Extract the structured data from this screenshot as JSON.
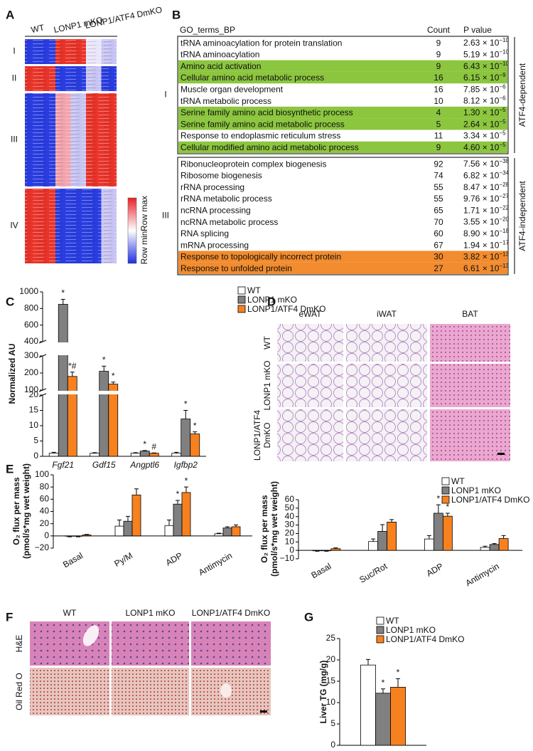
{
  "panels": [
    "A",
    "B",
    "C",
    "D",
    "E",
    "F",
    "G"
  ],
  "heatmap": {
    "columns": [
      "WT",
      "LONP1 mKO",
      "LONP1/ATF4 DmKO"
    ],
    "clusters": [
      "I",
      "II",
      "III",
      "IV"
    ],
    "scale": {
      "max": "Row max",
      "min": "Row min"
    }
  },
  "go_table": {
    "header": [
      "GO_terms_BP",
      "Count",
      "P value"
    ],
    "groups": [
      {
        "label": "I",
        "side": "ATF4-dependent",
        "rows": [
          {
            "term": "tRNA aminoacylation for protein translation",
            "count": 9,
            "p": {
              "base": "2.63 × 10",
              "exp": "−10"
            }
          },
          {
            "term": "tRNA aminoacylation",
            "count": 9,
            "p": {
              "base": "5.19 × 10",
              "exp": "−10"
            }
          },
          {
            "term": "Amino acid activation",
            "count": 9,
            "p": {
              "base": "6.43 × 10",
              "exp": "−10"
            },
            "highlight": "#8cc63f"
          },
          {
            "term": "Cellular amino acid metabolic process",
            "count": 16,
            "p": {
              "base": "6.15 × 10",
              "exp": "−9"
            },
            "highlight": "#8cc63f"
          },
          {
            "term": "Muscle organ development",
            "count": 16,
            "p": {
              "base": "7.85 × 10",
              "exp": "−6"
            }
          },
          {
            "term": "tRNA metabolic process",
            "count": 10,
            "p": {
              "base": "8.12 × 10",
              "exp": "−6"
            }
          },
          {
            "term": "Serine family amino acid biosynthetic process",
            "count": 4,
            "p": {
              "base": "1.30 × 10",
              "exp": "−5"
            },
            "highlight": "#8cc63f"
          },
          {
            "term": "Serine family amino acid metabolic process",
            "count": 5,
            "p": {
              "base": "2.64 × 10",
              "exp": "−5"
            },
            "highlight": "#8cc63f"
          },
          {
            "term": "Response to endoplasmic reticulum stress",
            "count": 11,
            "p": {
              "base": "3.34 × 10",
              "exp": "−5"
            }
          },
          {
            "term": "Cellular modified amino acid metabolic process",
            "count": 9,
            "p": {
              "base": "4.60 × 10",
              "exp": "−5"
            },
            "highlight": "#8cc63f"
          }
        ]
      },
      {
        "label": "III",
        "side": "ATF4-independent",
        "rows": [
          {
            "term": "Ribonucleoprotein complex biogenesis",
            "count": 92,
            "p": {
              "base": "7.56 × 10",
              "exp": "−38"
            }
          },
          {
            "term": "Ribosome biogenesis",
            "count": 74,
            "p": {
              "base": "6.82 × 10",
              "exp": "−34"
            }
          },
          {
            "term": "rRNA processing",
            "count": 55,
            "p": {
              "base": "8.47 × 10",
              "exp": "−28"
            }
          },
          {
            "term": "rRNA metabolic process",
            "count": 55,
            "p": {
              "base": "9.76 × 10",
              "exp": "−27"
            }
          },
          {
            "term": "ncRNA processing",
            "count": 65,
            "p": {
              "base": "1.71 × 10",
              "exp": "−22"
            }
          },
          {
            "term": "ncRNA metabolic process",
            "count": 70,
            "p": {
              "base": "3.55 × 10",
              "exp": "−20"
            }
          },
          {
            "term": "RNA splicing",
            "count": 60,
            "p": {
              "base": "8.90 × 10",
              "exp": "−18"
            }
          },
          {
            "term": "mRNA processing",
            "count": 67,
            "p": {
              "base": "1.94 × 10",
              "exp": "−17"
            }
          },
          {
            "term": "Response to topologically incorrect protein",
            "count": 30,
            "p": {
              "base": "3.82 × 10",
              "exp": "−13"
            },
            "highlight": "#f28c2e"
          },
          {
            "term": "Response to unfolded protein",
            "count": 27,
            "p": {
              "base": "6.61 × 10",
              "exp": "−13"
            },
            "highlight": "#f28c2e"
          }
        ]
      }
    ]
  },
  "histology_d": {
    "columns": [
      "eWAT",
      "iWAT",
      "BAT"
    ],
    "rows": [
      [
        "WT"
      ],
      [
        "LONP1 mKO"
      ],
      [
        "LONP1/ATF4",
        "DmKO"
      ]
    ]
  },
  "histology_f": {
    "columns": [
      "WT",
      "LONP1 mKO",
      "LONP1/ATF4 DmKO"
    ],
    "rows": [
      "H&E",
      "Oil Red O"
    ]
  },
  "chart_data": [
    {
      "type": "bar",
      "ylabel": "Normalized AU",
      "categories": [
        "Fgf21",
        "Gdf15",
        "Angptl6",
        "Igfbp2"
      ],
      "ylim": [
        0,
        1000
      ],
      "breaks": [
        [
          20,
          100
        ],
        [
          300,
          400
        ]
      ],
      "yticks": [
        0,
        5,
        10,
        15,
        20,
        100,
        200,
        300,
        400,
        600,
        800,
        1000
      ],
      "legend": true,
      "series": [
        {
          "name": "WT",
          "color": "#ffffff",
          "values": [
            1,
            1,
            1,
            1
          ],
          "errors": [
            0.3,
            0.2,
            0.2,
            0.3
          ]
        },
        {
          "name": "LONP1 mKO",
          "color": "#808080",
          "values": [
            850,
            210,
            1.7,
            12.2
          ],
          "errors": [
            60,
            30,
            0.2,
            2.8
          ],
          "annotations": [
            "*",
            "*",
            "*",
            "*"
          ]
        },
        {
          "name": "LONP1/ATF4 DmKO",
          "color": "#f7811f",
          "values": [
            180,
            135,
            1,
            7.3
          ],
          "errors": [
            25,
            12,
            0.1,
            0.7
          ],
          "annotations": [
            "*#",
            "*",
            "#",
            "*"
          ]
        }
      ]
    },
    {
      "type": "bar",
      "ylabel": [
        "O₂ flux per mass",
        "(pmol/s*mg wet weight)"
      ],
      "categories": [
        "Basal",
        "Py/M",
        "ADP",
        "Antimycin"
      ],
      "ylim": [
        -20,
        100
      ],
      "yticks": [
        {
          "value": -20,
          "label": "−20"
        },
        0,
        20,
        40,
        60,
        80,
        100
      ],
      "legend": false,
      "series": [
        {
          "name": "WT",
          "color": "#ffffff",
          "values": [
            -0.5,
            16,
            17,
            3.5
          ],
          "errors": [
            1,
            10,
            9,
            1
          ]
        },
        {
          "name": "LONP1 mKO",
          "color": "#808080",
          "values": [
            -0.5,
            24,
            52,
            13
          ],
          "errors": [
            1,
            8,
            6,
            2
          ],
          "annotations": [
            null,
            null,
            "*",
            null
          ]
        },
        {
          "name": "LONP1/ATF4 DmKO",
          "color": "#f7811f",
          "values": [
            1.5,
            67,
            71,
            15
          ],
          "errors": [
            1,
            10,
            9,
            3
          ],
          "annotations": [
            null,
            null,
            "*",
            null
          ]
        }
      ]
    },
    {
      "type": "bar",
      "ylabel": [
        "O₂ flux per mass",
        "(pmol/s*mg wet weight)"
      ],
      "categories": [
        "Basal",
        "Suc/Rot",
        "ADP",
        "Antimycin"
      ],
      "ylim": [
        -10,
        60
      ],
      "yticks": [
        {
          "value": -10,
          "label": "−10"
        },
        0,
        10,
        20,
        30,
        40,
        50,
        60
      ],
      "legend": true,
      "series": [
        {
          "name": "WT",
          "color": "#ffffff",
          "values": [
            -0.5,
            10.5,
            13.5,
            3.5
          ],
          "errors": [
            0.5,
            3,
            4,
            1.5
          ]
        },
        {
          "name": "LONP1 mKO",
          "color": "#808080",
          "values": [
            -0.5,
            22.5,
            44,
            7
          ],
          "errors": [
            0.5,
            8,
            10,
            1
          ],
          "annotations": [
            null,
            null,
            "*",
            null
          ]
        },
        {
          "name": "LONP1/ATF4 DmKO",
          "color": "#f7811f",
          "values": [
            2,
            33.5,
            40.5,
            14
          ],
          "errors": [
            1,
            3,
            3.5,
            3.5
          ],
          "annotations": [
            null,
            null,
            "*",
            null
          ]
        }
      ]
    },
    {
      "type": "bar",
      "ylabel": "Liver TG (mg/g)",
      "ylim": [
        0,
        25
      ],
      "yticks": [
        0,
        5,
        10,
        15,
        20,
        25
      ],
      "legend": true,
      "series": [
        {
          "name": "WT",
          "color": "#ffffff",
          "values": [
            18.8
          ],
          "errors": [
            1.3
          ]
        },
        {
          "name": "LONP1 mKO",
          "color": "#808080",
          "values": [
            12.2
          ],
          "errors": [
            1
          ],
          "annotations": [
            "*"
          ]
        },
        {
          "name": "LONP1/ATF4 DmKO",
          "color": "#f7811f",
          "values": [
            13.6
          ],
          "errors": [
            2
          ],
          "annotations": [
            "*"
          ]
        }
      ]
    }
  ]
}
